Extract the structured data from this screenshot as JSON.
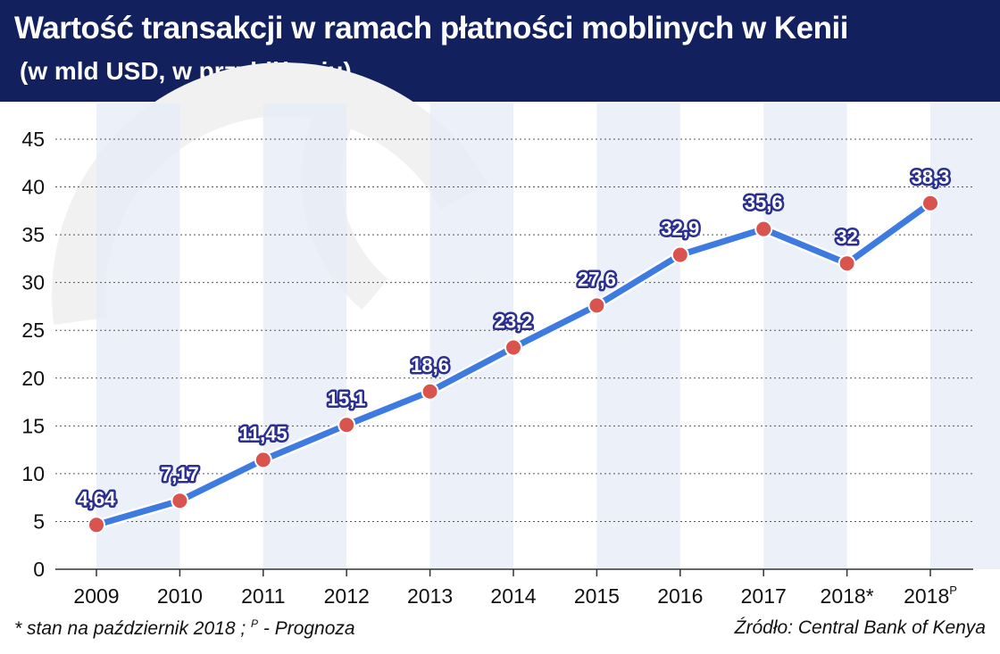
{
  "header": {
    "title": "Wartość transakcji w ramach płatności moblinych w Kenii",
    "subtitle": "(w mld USD, w przybliżeniu)"
  },
  "footer": {
    "footnote_prefix": "* stan na październik 2018 ; ",
    "footnote_sup": "P",
    "footnote_suffix": " - Prognoza",
    "source": "Źródło: Central Bank of Kenya"
  },
  "colors": {
    "header_bg": "#12205e",
    "line": "#3d7be0",
    "marker": "#d9534f",
    "label_text": "#ffffff",
    "label_outline": "#2b2f8f",
    "band": "#e4ebf7"
  },
  "chart_data": {
    "type": "line",
    "categories": [
      "2009",
      "2010",
      "2011",
      "2012",
      "2013",
      "2014",
      "2015",
      "2016",
      "2017",
      "2018*",
      "2018"
    ],
    "category_superscripts": [
      "",
      "",
      "",
      "",
      "",
      "",
      "",
      "",
      "",
      "",
      "P"
    ],
    "values": [
      4.64,
      7.17,
      11.45,
      15.1,
      18.6,
      23.2,
      27.6,
      32.9,
      35.6,
      32,
      38.3
    ],
    "data_labels": [
      "4,64",
      "7,17",
      "11,45",
      "15,1",
      "18,6",
      "23,2",
      "27,6",
      "32,9",
      "35,6",
      "32",
      "38,3"
    ],
    "yticks": [
      0,
      5,
      10,
      15,
      20,
      25,
      30,
      35,
      40,
      45
    ],
    "ylim": [
      0,
      45
    ],
    "grid": "horizontal dashed",
    "legend": "none"
  }
}
